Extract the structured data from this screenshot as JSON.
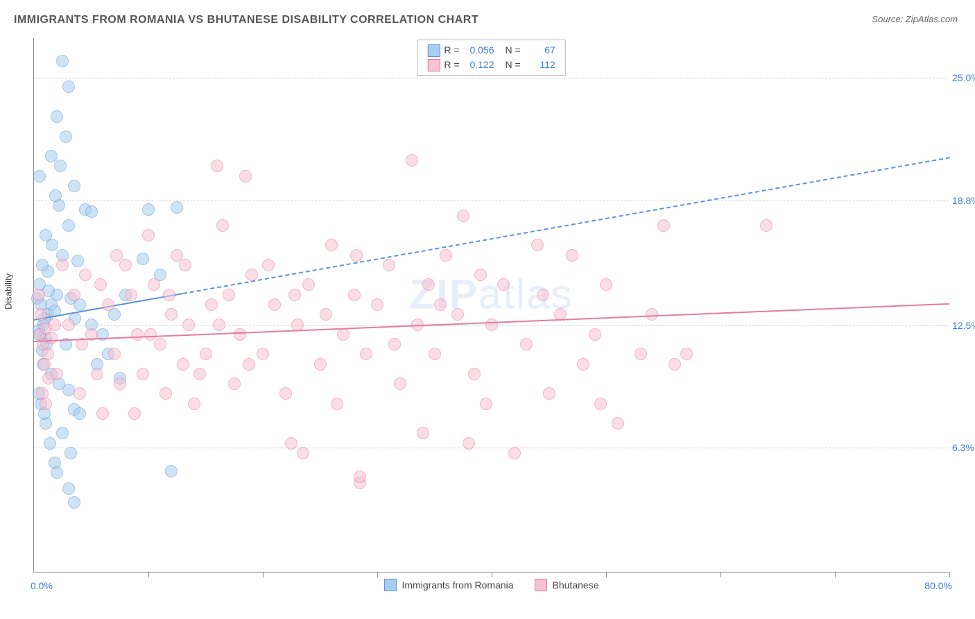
{
  "title": "IMMIGRANTS FROM ROMANIA VS BHUTANESE DISABILITY CORRELATION CHART",
  "source_label": "Source: ZipAtlas.com",
  "watermark": {
    "bold": "ZIP",
    "light": "atlas"
  },
  "chart": {
    "type": "scatter",
    "ylabel": "Disability",
    "xlim": [
      0,
      80
    ],
    "ylim": [
      0,
      27
    ],
    "x_ticks": [
      10,
      20,
      30,
      40,
      50,
      60,
      70,
      80
    ],
    "y_gridlines": [
      6.3,
      12.5,
      18.8,
      25.0
    ],
    "y_tick_labels": [
      "6.3%",
      "12.5%",
      "18.8%",
      "25.0%"
    ],
    "x_min_label": "0.0%",
    "x_max_label": "80.0%",
    "background_color": "#ffffff",
    "grid_color": "#d0d0d0",
    "axis_color": "#888888",
    "tick_label_color": "#3b7dd8",
    "point_radius": 9,
    "point_opacity": 0.55,
    "series": [
      {
        "id": "romania",
        "label": "Immigrants from Romania",
        "fill": "#a9cdf0",
        "stroke": "#5b94d6",
        "r_value": "0.056",
        "n_value": "67",
        "trend": {
          "x1": 0,
          "y1": 12.8,
          "x2": 80,
          "y2": 21.0,
          "solid_until_x": 13,
          "width": 2,
          "dash": "6,5"
        },
        "points": [
          [
            1.2,
            13.0
          ],
          [
            1.0,
            11.8
          ],
          [
            0.8,
            12.5
          ],
          [
            1.5,
            13.5
          ],
          [
            0.5,
            12.0
          ],
          [
            0.7,
            11.2
          ],
          [
            1.8,
            13.2
          ],
          [
            2.5,
            25.8
          ],
          [
            3.0,
            24.5
          ],
          [
            2.0,
            23.0
          ],
          [
            2.8,
            22.0
          ],
          [
            1.5,
            21.0
          ],
          [
            3.5,
            19.5
          ],
          [
            2.2,
            18.5
          ],
          [
            4.5,
            18.3
          ],
          [
            5.0,
            18.2
          ],
          [
            3.0,
            17.5
          ],
          [
            1.0,
            17.0
          ],
          [
            2.5,
            16.0
          ],
          [
            3.8,
            15.7
          ],
          [
            1.2,
            15.2
          ],
          [
            0.5,
            14.5
          ],
          [
            2.0,
            14.0
          ],
          [
            3.2,
            13.8
          ],
          [
            4.0,
            13.5
          ],
          [
            0.8,
            10.5
          ],
          [
            1.5,
            10.0
          ],
          [
            2.2,
            9.5
          ],
          [
            3.0,
            9.2
          ],
          [
            0.6,
            8.5
          ],
          [
            3.5,
            8.2
          ],
          [
            1.0,
            7.5
          ],
          [
            2.5,
            7.0
          ],
          [
            3.2,
            6.0
          ],
          [
            1.8,
            5.5
          ],
          [
            2.0,
            5.0
          ],
          [
            3.0,
            4.2
          ],
          [
            3.5,
            3.5
          ],
          [
            12.0,
            5.1
          ],
          [
            12.5,
            18.4
          ],
          [
            10.0,
            18.3
          ],
          [
            11.0,
            15.0
          ],
          [
            8.0,
            14.0
          ],
          [
            9.5,
            15.8
          ],
          [
            7.0,
            13.0
          ],
          [
            6.0,
            12.0
          ],
          [
            5.5,
            10.5
          ],
          [
            7.5,
            9.8
          ],
          [
            0.3,
            13.8
          ],
          [
            0.4,
            12.2
          ],
          [
            0.6,
            13.5
          ],
          [
            0.9,
            12.8
          ],
          [
            1.1,
            11.5
          ],
          [
            1.3,
            14.2
          ],
          [
            0.7,
            15.5
          ],
          [
            1.6,
            16.5
          ],
          [
            2.3,
            20.5
          ],
          [
            1.9,
            19.0
          ],
          [
            4.0,
            8.0
          ],
          [
            5.0,
            12.5
          ],
          [
            6.5,
            11.0
          ],
          [
            0.4,
            9.0
          ],
          [
            0.9,
            8.0
          ],
          [
            1.4,
            6.5
          ],
          [
            2.8,
            11.5
          ],
          [
            3.6,
            12.8
          ],
          [
            0.5,
            20.0
          ]
        ]
      },
      {
        "id": "bhutanese",
        "label": "Bhutanese",
        "fill": "#f7c2d1",
        "stroke": "#e77aa0",
        "r_value": "0.122",
        "n_value": "112",
        "trend": {
          "x1": 0,
          "y1": 11.7,
          "x2": 80,
          "y2": 13.6,
          "solid_until_x": 80,
          "width": 2.5
        },
        "points": [
          [
            0.5,
            12.0
          ],
          [
            0.8,
            11.5
          ],
          [
            1.0,
            12.3
          ],
          [
            1.2,
            11.0
          ],
          [
            0.6,
            13.0
          ],
          [
            1.5,
            11.8
          ],
          [
            0.9,
            10.5
          ],
          [
            0.4,
            14.0
          ],
          [
            1.8,
            12.5
          ],
          [
            0.7,
            9.0
          ],
          [
            1.0,
            8.5
          ],
          [
            1.3,
            9.8
          ],
          [
            2.0,
            10.0
          ],
          [
            3.0,
            12.5
          ],
          [
            4.0,
            9.0
          ],
          [
            4.5,
            15.0
          ],
          [
            5.0,
            12.0
          ],
          [
            5.5,
            10.0
          ],
          [
            6.0,
            8.0
          ],
          [
            6.5,
            13.5
          ],
          [
            7.0,
            11.0
          ],
          [
            7.5,
            9.5
          ],
          [
            8.0,
            15.5
          ],
          [
            8.5,
            14.0
          ],
          [
            9.0,
            12.0
          ],
          [
            9.5,
            10.0
          ],
          [
            10.0,
            17.0
          ],
          [
            10.5,
            14.5
          ],
          [
            11.0,
            11.5
          ],
          [
            11.5,
            9.0
          ],
          [
            12.0,
            13.0
          ],
          [
            12.5,
            16.0
          ],
          [
            13.0,
            10.5
          ],
          [
            13.5,
            12.5
          ],
          [
            14.0,
            8.5
          ],
          [
            15.0,
            11.0
          ],
          [
            15.5,
            13.5
          ],
          [
            16.0,
            20.5
          ],
          [
            16.5,
            17.5
          ],
          [
            17.0,
            14.0
          ],
          [
            17.5,
            9.5
          ],
          [
            18.0,
            12.0
          ],
          [
            18.5,
            20.0
          ],
          [
            19.0,
            15.0
          ],
          [
            20.0,
            11.0
          ],
          [
            21.0,
            13.5
          ],
          [
            22.0,
            9.0
          ],
          [
            22.5,
            6.5
          ],
          [
            23.0,
            12.5
          ],
          [
            23.5,
            6.0
          ],
          [
            24.0,
            14.5
          ],
          [
            25.0,
            10.5
          ],
          [
            26.0,
            16.5
          ],
          [
            26.5,
            8.5
          ],
          [
            27.0,
            12.0
          ],
          [
            28.0,
            14.0
          ],
          [
            28.5,
            4.5
          ],
          [
            29.0,
            11.0
          ],
          [
            30.0,
            13.5
          ],
          [
            31.0,
            15.5
          ],
          [
            32.0,
            9.5
          ],
          [
            33.0,
            20.8
          ],
          [
            33.5,
            12.5
          ],
          [
            34.0,
            7.0
          ],
          [
            34.5,
            14.5
          ],
          [
            35.0,
            11.0
          ],
          [
            36.0,
            16.0
          ],
          [
            37.0,
            13.0
          ],
          [
            38.0,
            6.5
          ],
          [
            38.5,
            10.0
          ],
          [
            39.0,
            15.0
          ],
          [
            40.0,
            12.5
          ],
          [
            41.0,
            14.5
          ],
          [
            42.0,
            6.0
          ],
          [
            43.0,
            11.5
          ],
          [
            44.0,
            16.5
          ],
          [
            45.0,
            9.0
          ],
          [
            46.0,
            13.0
          ],
          [
            47.0,
            16.0
          ],
          [
            48.0,
            10.5
          ],
          [
            49.0,
            12.0
          ],
          [
            50.0,
            14.5
          ],
          [
            51.0,
            7.5
          ],
          [
            53.0,
            11.0
          ],
          [
            55.0,
            17.5
          ],
          [
            56.0,
            10.5
          ],
          [
            57.0,
            11.0
          ],
          [
            64.0,
            17.5
          ],
          [
            2.5,
            15.5
          ],
          [
            3.5,
            14.0
          ],
          [
            4.2,
            11.5
          ],
          [
            5.8,
            14.5
          ],
          [
            7.2,
            16.0
          ],
          [
            8.8,
            8.0
          ],
          [
            10.2,
            12.0
          ],
          [
            11.8,
            14.0
          ],
          [
            13.2,
            15.5
          ],
          [
            14.5,
            10.0
          ],
          [
            16.2,
            12.5
          ],
          [
            18.8,
            10.5
          ],
          [
            20.5,
            15.5
          ],
          [
            22.8,
            14.0
          ],
          [
            25.5,
            13.0
          ],
          [
            28.2,
            16.0
          ],
          [
            31.5,
            11.5
          ],
          [
            35.5,
            13.5
          ],
          [
            39.5,
            8.5
          ],
          [
            44.5,
            14.0
          ],
          [
            49.5,
            8.5
          ],
          [
            54.0,
            13.0
          ],
          [
            28.5,
            4.8
          ],
          [
            37.5,
            18.0
          ]
        ]
      }
    ]
  },
  "legend_box": {
    "rows": [
      {
        "swatch_fill": "#a9cdf0",
        "swatch_stroke": "#5b94d6",
        "r_label": "R =",
        "r": "0.056",
        "n_label": "N =",
        "n": "67"
      },
      {
        "swatch_fill": "#f7c2d1",
        "swatch_stroke": "#e77aa0",
        "r_label": "R =",
        "r": "0.122",
        "n_label": "N =",
        "n": "112"
      }
    ]
  }
}
